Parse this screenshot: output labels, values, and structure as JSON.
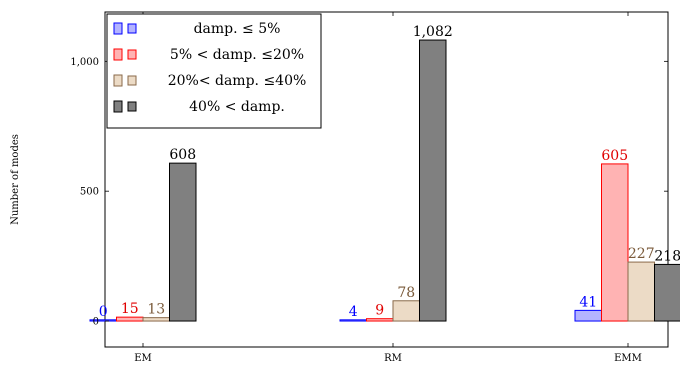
{
  "chart_data": {
    "type": "bar",
    "categories": [
      "EM",
      "RM",
      "EMM"
    ],
    "ylabel": "Number of modes",
    "xlabel": "",
    "title": "",
    "ylim": [
      -100,
      1190
    ],
    "yticks": [
      0,
      500,
      1000
    ],
    "ytick_labels": [
      "0",
      "500",
      "1,000"
    ],
    "grid": false,
    "legend_position": "top-left",
    "series": [
      {
        "name": "damp. ≤ 5%",
        "values": [
          0,
          4,
          41
        ],
        "value_labels": [
          "0",
          "4",
          "41"
        ],
        "fill": "#b3b3ff",
        "stroke": "#0000ff",
        "label_color": "#0000ff"
      },
      {
        "name": "5% < damp. ≤20%",
        "values": [
          15,
          9,
          605
        ],
        "value_labels": [
          "15",
          "9",
          "605"
        ],
        "fill": "#ffb3b3",
        "stroke": "#ff0000",
        "label_color": "#e00000"
      },
      {
        "name": "20%< damp. ≤40%",
        "values": [
          13,
          78,
          227
        ],
        "value_labels": [
          "13",
          "78",
          "227"
        ],
        "fill": "#ecdbc6",
        "stroke": "#8a6a4a",
        "label_color": "#7a5a3a"
      },
      {
        "name": "40% < damp.",
        "values": [
          608,
          1082,
          218
        ],
        "value_labels": [
          "608",
          "1,082",
          "218"
        ],
        "fill": "#808080",
        "stroke": "#000000",
        "label_color": "#000000"
      }
    ]
  }
}
